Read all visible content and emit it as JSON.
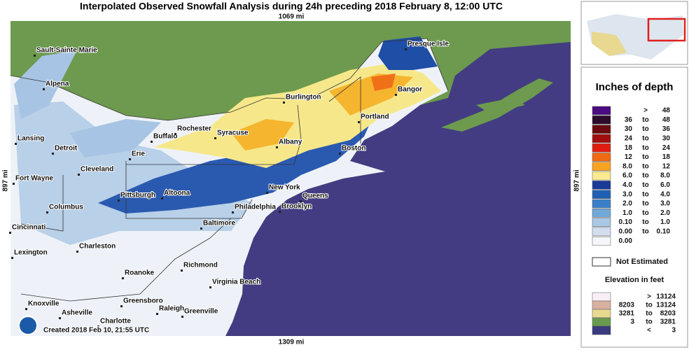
{
  "title": "Interpolated Observed Snowfall Analysis during 24h preceding 2018 February 8, 12:00 UTC",
  "scale": {
    "top": "1069 mi",
    "bottom": "1309 mi",
    "left": "897 mi",
    "right": "897 mi"
  },
  "cities": [
    "Sault-Sainte Marie",
    "Alpena",
    "Lansing",
    "Detroit",
    "Fort Wayne",
    "Cleveland",
    "Columbus",
    "Cincinnati",
    "Lexington",
    "Charleston",
    "Pittsburgh",
    "Altoona",
    "Erie",
    "Buffalo",
    "Rochester",
    "Syracuse",
    "Albany",
    "Burlington",
    "Presque Isle",
    "Bangor",
    "Portland",
    "Boston",
    "New York",
    "Queens",
    "Brooklyn",
    "Philadelphia",
    "Baltimore",
    "Roanoke",
    "Richmond",
    "Virginia Beach",
    "Greensboro",
    "Raleigh",
    "Greenville",
    "Knoxville",
    "Asheville",
    "Charlotte"
  ],
  "created": "Created 2018 Feb 10, 21:55 UTC",
  "depth_legend": {
    "title": "Inches of depth",
    "rows": [
      {
        "sep": ">",
        "high": "48",
        "color": "#4a0c80"
      },
      {
        "low": "36",
        "sep": "to",
        "high": "48",
        "color": "#2c0c2a"
      },
      {
        "low": "30",
        "sep": "to",
        "high": "36",
        "color": "#6a0a0e"
      },
      {
        "low": "24",
        "sep": "to",
        "high": "30",
        "color": "#a00e10"
      },
      {
        "low": "18",
        "sep": "to",
        "high": "24",
        "color": "#e01c10"
      },
      {
        "low": "12",
        "sep": "to",
        "high": "18",
        "color": "#f06a12"
      },
      {
        "low": "8.0",
        "sep": "to",
        "high": "12",
        "color": "#f8a420"
      },
      {
        "low": "6.0",
        "sep": "to",
        "high": "8.0",
        "color": "#faea90"
      },
      {
        "low": "4.0",
        "sep": "to",
        "high": "6.0",
        "color": "#1a3a9a"
      },
      {
        "low": "3.0",
        "sep": "to",
        "high": "4.0",
        "color": "#2060b4"
      },
      {
        "low": "2.0",
        "sep": "to",
        "high": "3.0",
        "color": "#3a80c8"
      },
      {
        "low": "1.0",
        "sep": "to",
        "high": "2.0",
        "color": "#70a8d8"
      },
      {
        "low": "0.10",
        "sep": "to",
        "high": "1.0",
        "color": "#a8c8e4"
      },
      {
        "low": "0.00",
        "sep": "to",
        "high": "0.10",
        "color": "#d2deee"
      },
      {
        "low": "0.00",
        "color": "#f4f6fa"
      }
    ],
    "not_estimated": "Not Estimated"
  },
  "elevation_legend": {
    "title": "Elevation in feet",
    "rows": [
      {
        "sep": ">",
        "high": "13124",
        "color": "#f8eef6"
      },
      {
        "low": "8203",
        "sep": "to",
        "high": "13124",
        "color": "#d8b0a0"
      },
      {
        "low": "3281",
        "sep": "to",
        "high": "8203",
        "color": "#e8d890"
      },
      {
        "low": "3",
        "sep": "to",
        "high": "3281",
        "color": "#6a9a50"
      },
      {
        "sep": "<",
        "high": "3",
        "color": "#3a3a80"
      }
    ]
  }
}
